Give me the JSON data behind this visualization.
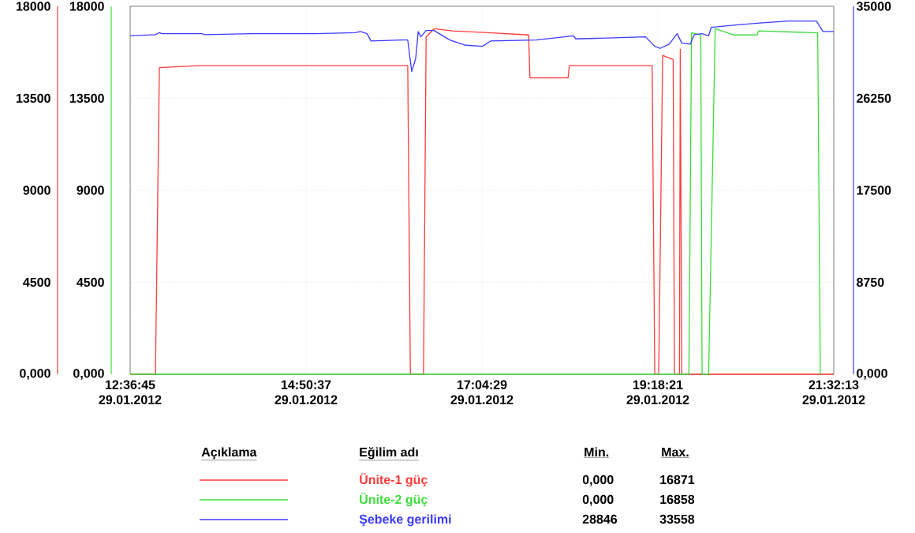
{
  "chart_data": {
    "type": "line",
    "xlim": [
      "2012-01-29T12:36:45",
      "2012-01-29T21:32:13"
    ],
    "xticks": [
      {
        "value": "2012-01-29T12:36:45",
        "label": "12:36:45 29.01.2012"
      },
      {
        "value": "2012-01-29T14:50:37",
        "label": "14:50:37 29.01.2012"
      },
      {
        "value": "2012-01-29T17:04:29",
        "label": "17:04:29 29.01.2012"
      },
      {
        "value": "2012-01-29T19:18:21",
        "label": "19:18:21 29.01.2012"
      },
      {
        "value": "2012-01-29T21:32:13",
        "label": "21:32:13 29.01.2012"
      }
    ],
    "ylim": [
      0,
      18000
    ],
    "yticks": [
      {
        "value": 0,
        "label": "0,000"
      },
      4500,
      9000,
      13500,
      18000
    ],
    "y3lim": [
      0,
      18000
    ],
    "y3ticks": [
      {
        "value": 0,
        "label": "0,000"
      },
      4500,
      9000,
      13500,
      18000
    ],
    "y2lim": [
      0,
      35000
    ],
    "y2ticks": [
      {
        "value": 0,
        "label": "0,000"
      },
      8750,
      17500,
      26250,
      35000
    ],
    "grid": true,
    "legend": "bottom",
    "annotations": [
      "Açıklama",
      "Eğilim adı",
      "Min.",
      "Max.",
      "0,000",
      "16871",
      "0,000",
      "16858",
      "28846",
      "33558"
    ],
    "series": [
      {
        "name": "Ünite-1 güç",
        "color": "#ff3b3b",
        "x": [
          "2012-01-29T12:36:45",
          "2012-01-29T12:56",
          "2012-01-29T12:59",
          "2012-01-29T13:30",
          "2012-01-29T14:30",
          "2012-01-29T15:30",
          "2012-01-29T16:08",
          "2012-01-29T16:10",
          "2012-01-29T16:20",
          "2012-01-29T16:22",
          "2012-01-29T16:28",
          "2012-01-29T16:42",
          "2012-01-29T17:12",
          "2012-01-29T17:40",
          "2012-01-29T17:41",
          "2012-01-29T18:10",
          "2012-01-29T18:11",
          "2012-01-29T19:14",
          "2012-01-29T19:16",
          "2012-01-29T19:19",
          "2012-01-29T19:22",
          "2012-01-29T19:30",
          "2012-01-29T19:31",
          "2012-01-29T19:34:48",
          "2012-01-29T19:35:24",
          "2012-01-29T19:36:36",
          "2012-01-29T21:32:13"
        ],
        "values": [
          0,
          0,
          15000,
          15100,
          15100,
          15100,
          15100,
          0,
          0,
          16500,
          16900,
          16800,
          16700,
          16600,
          14500,
          14500,
          15100,
          15100,
          0,
          0,
          15600,
          15400,
          0,
          0,
          15900,
          0,
          0
        ]
      },
      {
        "name": "Ünite-2 güç",
        "color": "#3cdc3c",
        "axis": "y3",
        "x": [
          "2012-01-29T12:36:45",
          "2012-01-29T19:42",
          "2012-01-29T19:44",
          "2012-01-29T19:51",
          "2012-01-29T19:52",
          "2012-01-29T19:57",
          "2012-01-29T20:02",
          "2012-01-29T20:16",
          "2012-01-29T20:34",
          "2012-01-29T20:35",
          "2012-01-29T21:20",
          "2012-01-29T21:22"
        ],
        "values": [
          0,
          0,
          16700,
          16600,
          0,
          0,
          16900,
          16600,
          16600,
          16800,
          16700,
          0
        ]
      },
      {
        "name": "Şebeke gerilimi",
        "color": "#3b3bff",
        "axis": "y2",
        "x": [
          "2012-01-29T12:36:45",
          "2012-01-29T12:56",
          "2012-01-29T12:59",
          "2012-01-29T13:01",
          "2012-01-29T13:31",
          "2012-01-29T13:34",
          "2012-01-29T14:10",
          "2012-01-29T14:58",
          "2012-01-29T15:28",
          "2012-01-29T15:32",
          "2012-01-29T15:37",
          "2012-01-29T15:40",
          "2012-01-29T16:04",
          "2012-01-29T16:08",
          "2012-01-29T16:11",
          "2012-01-29T16:14",
          "2012-01-29T16:16",
          "2012-01-29T16:18",
          "2012-01-29T16:22",
          "2012-01-29T16:28",
          "2012-01-29T16:40",
          "2012-01-29T16:52",
          "2012-01-29T17:05",
          "2012-01-29T17:11",
          "2012-01-29T17:46",
          "2012-01-29T18:14",
          "2012-01-29T18:16",
          "2012-01-29T19:09",
          "2012-01-29T19:16",
          "2012-01-29T19:20",
          "2012-01-29T19:27",
          "2012-01-29T19:33",
          "2012-01-29T19:36:36",
          "2012-01-29T19:43",
          "2012-01-29T19:46",
          "2012-01-29T19:52",
          "2012-01-29T19:57",
          "2012-01-29T19:59",
          "2012-01-29T20:16",
          "2012-01-29T20:34",
          "2012-01-29T20:58",
          "2012-01-29T21:19",
          "2012-01-29T21:24",
          "2012-01-29T21:32:13"
        ],
        "values": [
          32200,
          32300,
          32500,
          32400,
          32400,
          32300,
          32400,
          32400,
          32500,
          32600,
          32400,
          31700,
          31800,
          31800,
          28800,
          30000,
          32600,
          32100,
          32700,
          32700,
          31800,
          31300,
          31200,
          31700,
          31800,
          32200,
          31900,
          32100,
          31200,
          31000,
          31400,
          32400,
          31500,
          31400,
          32300,
          32400,
          32200,
          33000,
          33200,
          33400,
          33600,
          33600,
          32600,
          32600
        ]
      }
    ]
  }
}
